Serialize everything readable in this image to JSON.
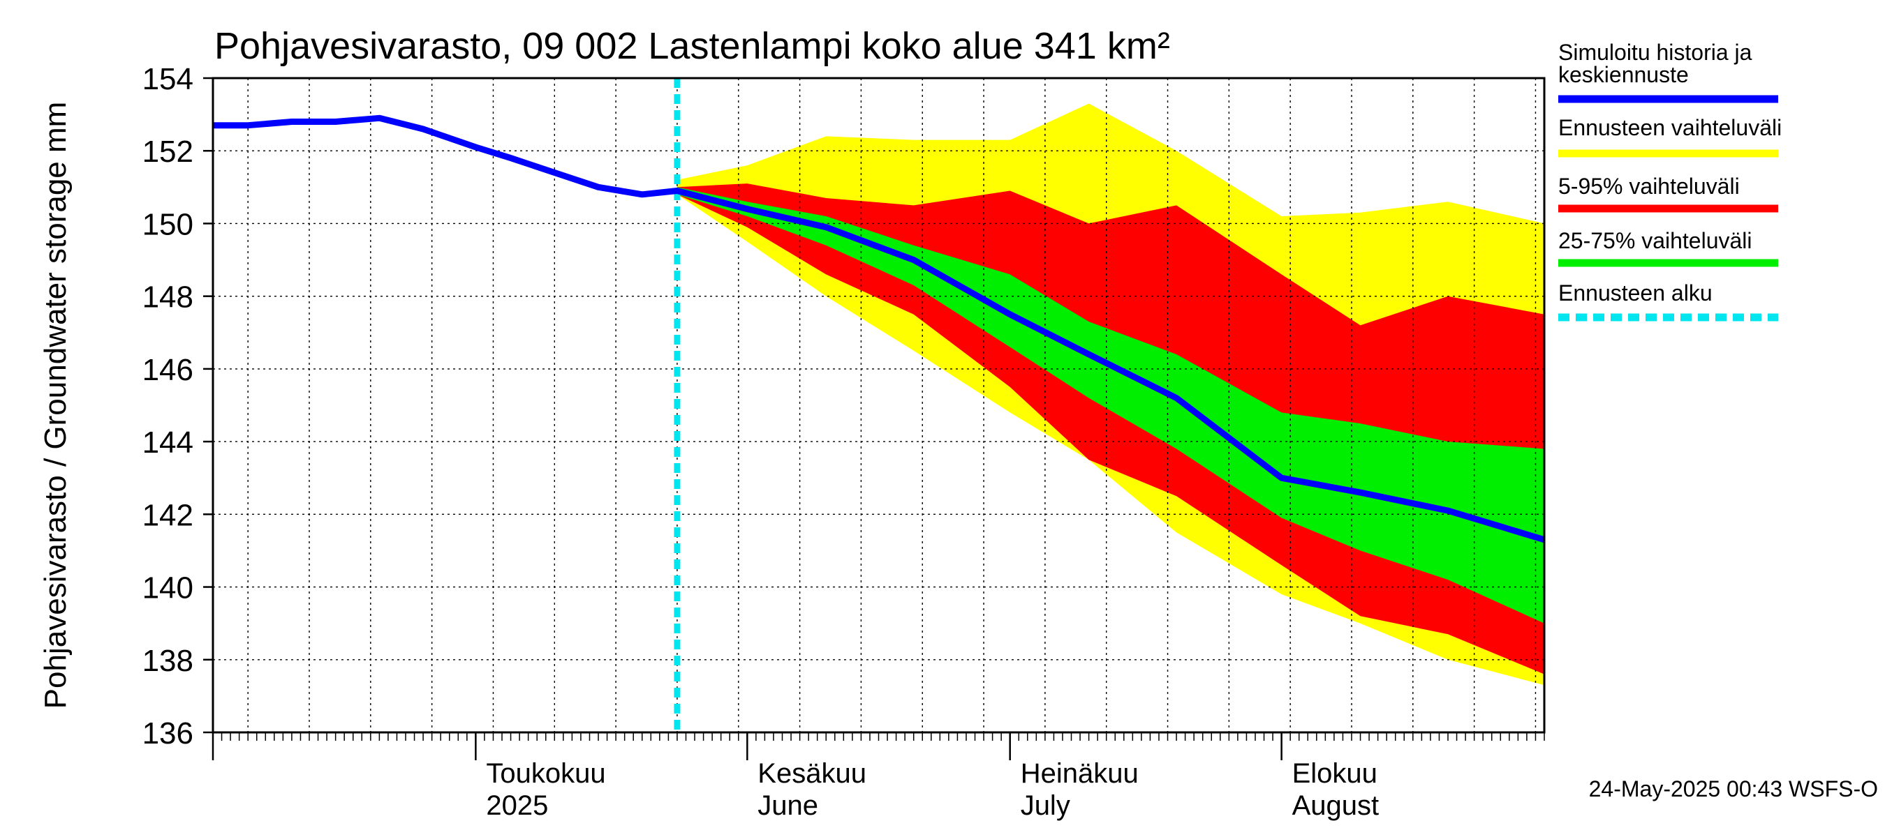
{
  "chart_data": {
    "type": "area",
    "title": "Pohjavesivarasto, 09 002 Lastenlampi koko alue 341 km²",
    "ylabel": "Pohjavesivarasto / Groundwater storage   mm",
    "ylim": [
      136,
      154
    ],
    "yticks": [
      136,
      138,
      140,
      142,
      144,
      146,
      148,
      150,
      152,
      154
    ],
    "xlim": [
      "2025-04-01",
      "2025-08-31"
    ],
    "month_labels": [
      {
        "date": "2025-05-01",
        "line1": "Toukokuu",
        "line2": "2025"
      },
      {
        "date": "2025-06-01",
        "line1": "Kesäkuu",
        "line2": "June"
      },
      {
        "date": "2025-07-01",
        "line1": "Heinäkuu",
        "line2": "July"
      },
      {
        "date": "2025-08-01",
        "line1": "Elokuu",
        "line2": "August"
      }
    ],
    "forecast_start": "2025-05-24",
    "series": [
      {
        "name": "Simuloitu historia ja keskiennuste",
        "color": "#0000ff",
        "x": [
          "2025-04-01",
          "2025-04-05",
          "2025-04-10",
          "2025-04-15",
          "2025-04-20",
          "2025-04-25",
          "2025-05-01",
          "2025-05-05",
          "2025-05-10",
          "2025-05-15",
          "2025-05-20",
          "2025-05-24",
          "2025-06-01",
          "2025-06-10",
          "2025-06-20",
          "2025-07-01",
          "2025-07-10",
          "2025-07-20",
          "2025-08-01",
          "2025-08-10",
          "2025-08-20",
          "2025-08-31"
        ],
        "values": [
          152.7,
          152.7,
          152.8,
          152.8,
          152.9,
          152.6,
          152.1,
          151.8,
          151.4,
          151.0,
          150.8,
          150.9,
          150.4,
          149.9,
          149.0,
          147.5,
          146.4,
          145.2,
          143.0,
          142.6,
          142.1,
          141.3
        ]
      },
      {
        "name": "Ennusteen vaihteluväli",
        "color": "#ffff00",
        "x": [
          "2025-05-24",
          "2025-06-01",
          "2025-06-10",
          "2025-06-20",
          "2025-07-01",
          "2025-07-10",
          "2025-07-20",
          "2025-08-01",
          "2025-08-10",
          "2025-08-20",
          "2025-08-31"
        ],
        "upper": [
          151.2,
          151.6,
          152.4,
          152.3,
          152.3,
          153.3,
          152.0,
          150.2,
          150.3,
          150.6,
          150.0
        ],
        "lower": [
          150.8,
          149.5,
          148.0,
          146.5,
          144.8,
          143.5,
          141.5,
          139.8,
          139.0,
          138.0,
          137.3
        ]
      },
      {
        "name": "5-95% vaihteluväli",
        "color": "#ff0000",
        "x": [
          "2025-05-24",
          "2025-06-01",
          "2025-06-10",
          "2025-06-20",
          "2025-07-01",
          "2025-07-10",
          "2025-07-20",
          "2025-08-01",
          "2025-08-10",
          "2025-08-20",
          "2025-08-31"
        ],
        "upper": [
          151.0,
          151.1,
          150.7,
          150.5,
          150.9,
          150.0,
          150.5,
          148.6,
          147.2,
          148.0,
          147.5
        ],
        "lower": [
          150.8,
          149.9,
          148.6,
          147.5,
          145.5,
          143.5,
          142.5,
          140.6,
          139.2,
          138.7,
          137.6
        ]
      },
      {
        "name": "25-75% vaihteluväli",
        "color": "#00ee00",
        "x": [
          "2025-05-24",
          "2025-06-01",
          "2025-06-10",
          "2025-06-20",
          "2025-07-01",
          "2025-07-10",
          "2025-07-20",
          "2025-08-01",
          "2025-08-10",
          "2025-08-20",
          "2025-08-31"
        ],
        "upper": [
          151.0,
          150.6,
          150.2,
          149.4,
          148.6,
          147.3,
          146.4,
          144.8,
          144.5,
          144.0,
          143.8
        ],
        "lower": [
          150.8,
          150.2,
          149.4,
          148.3,
          146.6,
          145.2,
          143.8,
          141.9,
          141.0,
          140.2,
          139.0
        ]
      },
      {
        "name": "Ennusteen alku",
        "color": "#00e5ee"
      }
    ],
    "legend": [
      {
        "label": "Simuloitu historia ja keskiennuste",
        "color": "#0000ff",
        "style": "line"
      },
      {
        "label": "Ennusteen vaihteluväli",
        "color": "#ffff00",
        "style": "line"
      },
      {
        "label": "5-95% vaihteluväli",
        "color": "#ff0000",
        "style": "line"
      },
      {
        "label": "25-75% vaihteluväli",
        "color": "#00ee00",
        "style": "line"
      },
      {
        "label": "Ennusteen alku",
        "color": "#00e5ee",
        "style": "dashed"
      }
    ],
    "legend_placement": "right",
    "grid": true,
    "footer": "24-May-2025 00:43 WSFS-O"
  }
}
